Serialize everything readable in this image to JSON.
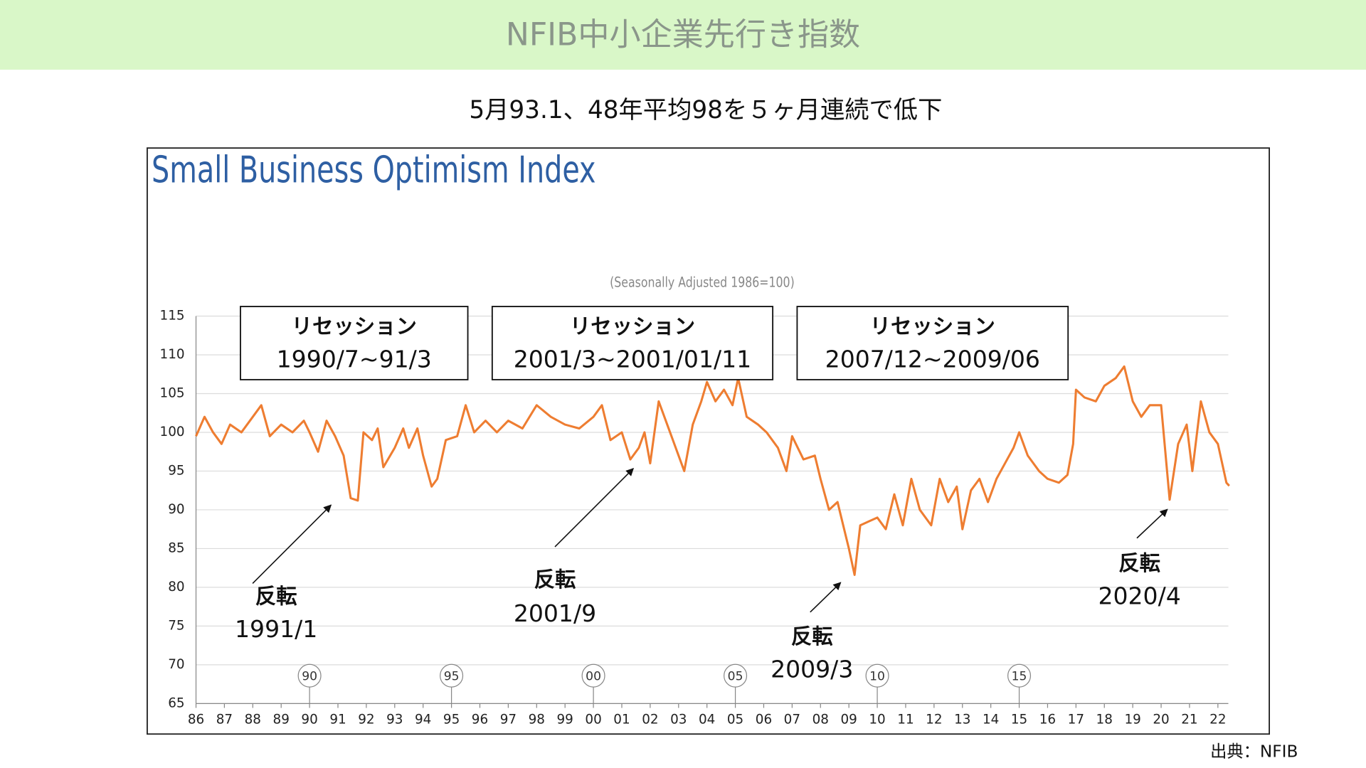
{
  "header": {
    "title": "NFIB中小企業先行き指数",
    "subtitle": "5月93.1、48年平均98を５ヶ月連続で低下"
  },
  "source": "出典：NFIB",
  "chart_data": {
    "type": "line",
    "title": "Small Business Optimism Index",
    "subtitle": "(Seasonally Adjusted 1986=100)",
    "xlim": [
      1986,
      2022.6
    ],
    "ylim": [
      65,
      115
    ],
    "yticks": [
      65,
      70,
      75,
      80,
      85,
      90,
      95,
      100,
      105,
      110,
      115
    ],
    "xticks": [
      {
        "value": 1986,
        "label": "86"
      },
      {
        "value": 1987,
        "label": "87"
      },
      {
        "value": 1988,
        "label": "88"
      },
      {
        "value": 1989,
        "label": "89"
      },
      {
        "value": 1990,
        "label": "90"
      },
      {
        "value": 1991,
        "label": "91"
      },
      {
        "value": 1992,
        "label": "92"
      },
      {
        "value": 1993,
        "label": "93"
      },
      {
        "value": 1994,
        "label": "94"
      },
      {
        "value": 1995,
        "label": "95"
      },
      {
        "value": 1996,
        "label": "96"
      },
      {
        "value": 1997,
        "label": "97"
      },
      {
        "value": 1998,
        "label": "98"
      },
      {
        "value": 1999,
        "label": "99"
      },
      {
        "value": 2000,
        "label": "00"
      },
      {
        "value": 2001,
        "label": "01"
      },
      {
        "value": 2002,
        "label": "02"
      },
      {
        "value": 2003,
        "label": "03"
      },
      {
        "value": 2004,
        "label": "04"
      },
      {
        "value": 2005,
        "label": "05"
      },
      {
        "value": 2006,
        "label": "06"
      },
      {
        "value": 2007,
        "label": "07"
      },
      {
        "value": 2008,
        "label": "08"
      },
      {
        "value": 2009,
        "label": "09"
      },
      {
        "value": 2010,
        "label": "10"
      },
      {
        "value": 2011,
        "label": "11"
      },
      {
        "value": 2012,
        "label": "12"
      },
      {
        "value": 2013,
        "label": "13"
      },
      {
        "value": 2014,
        "label": "14"
      },
      {
        "value": 2015,
        "label": "15"
      },
      {
        "value": 2016,
        "label": "16"
      },
      {
        "value": 2017,
        "label": "17"
      },
      {
        "value": 2018,
        "label": "18"
      },
      {
        "value": 2019,
        "label": "19"
      },
      {
        "value": 2020,
        "label": "20"
      },
      {
        "value": 2021,
        "label": "21"
      },
      {
        "value": 2022,
        "label": "22"
      }
    ],
    "grid": true,
    "series": [
      {
        "color": "#ee7d31",
        "x": [
          1986.0,
          1986.3,
          1986.6,
          1986.9,
          1987.2,
          1987.6,
          1988.0,
          1988.3,
          1988.6,
          1989.0,
          1989.4,
          1989.8,
          1990.0,
          1990.3,
          1990.6,
          1990.9,
          1991.2,
          1991.45,
          1991.7,
          1991.9,
          1992.2,
          1992.4,
          1992.6,
          1993.0,
          1993.3,
          1993.5,
          1993.8,
          1994.0,
          1994.3,
          1994.5,
          1994.8,
          1995.2,
          1995.5,
          1995.8,
          1996.2,
          1996.6,
          1997.0,
          1997.5,
          1998.0,
          1998.5,
          1999.0,
          1999.5,
          2000.0,
          2000.3,
          2000.6,
          2001.0,
          2001.3,
          2001.6,
          2001.8,
          2002.0,
          2002.3,
          2002.6,
          2002.9,
          2003.2,
          2003.5,
          2003.8,
          2004.0,
          2004.3,
          2004.6,
          2004.9,
          2005.1,
          2005.4,
          2005.8,
          2006.1,
          2006.5,
          2006.8,
          2007.0,
          2007.4,
          2007.8,
          2008.0,
          2008.3,
          2008.6,
          2008.8,
          2009.0,
          2009.2,
          2009.4,
          2009.7,
          2010.0,
          2010.3,
          2010.6,
          2010.9,
          2011.2,
          2011.5,
          2011.9,
          2012.2,
          2012.5,
          2012.8,
          2013.0,
          2013.3,
          2013.6,
          2013.9,
          2014.2,
          2014.5,
          2014.8,
          2015.0,
          2015.3,
          2015.7,
          2016.0,
          2016.4,
          2016.7,
          2016.9,
          2017.0,
          2017.3,
          2017.7,
          2018.0,
          2018.4,
          2018.7,
          2019.0,
          2019.3,
          2019.6,
          2020.0,
          2020.3,
          2020.6,
          2020.9,
          2021.1,
          2021.4,
          2021.7,
          2022.0,
          2022.3,
          2022.4
        ],
        "values": [
          99.5,
          102,
          100,
          98.5,
          101,
          100,
          102,
          103.5,
          99.5,
          101,
          100,
          101.5,
          100,
          97.5,
          101.5,
          99.5,
          97,
          91.5,
          91.2,
          100,
          99,
          100.5,
          95.5,
          98,
          100.5,
          98,
          100.5,
          97,
          93,
          94,
          99,
          99.5,
          103.5,
          100,
          101.5,
          100,
          101.5,
          100.5,
          103.5,
          102,
          101,
          100.5,
          102,
          103.5,
          99,
          100,
          96.5,
          98,
          100,
          96,
          104,
          101,
          98,
          95,
          101,
          104,
          106.5,
          104,
          105.5,
          103.5,
          107,
          102,
          101,
          100,
          98,
          95,
          99.5,
          96.5,
          97,
          94,
          90,
          91,
          88,
          85,
          81.6,
          88,
          88.5,
          89,
          87.5,
          92,
          88,
          94,
          90,
          88,
          94,
          91,
          93,
          87.5,
          92.5,
          94,
          91,
          94,
          96,
          98,
          100,
          97,
          95,
          94,
          93.5,
          94.5,
          98.5,
          105.5,
          104.5,
          104,
          106,
          107,
          108.5,
          104,
          102,
          103.5,
          103.5,
          91.3,
          98.5,
          101,
          95,
          104,
          100,
          98.5,
          93.5,
          93.1
        ]
      }
    ],
    "recessions": [
      {
        "label": "リセッション",
        "period": "1990/7~91/3"
      },
      {
        "label": "リセッション",
        "period": "2001/3~2001/01/11"
      },
      {
        "label": "リセッション",
        "period": "2007/12~2009/06"
      }
    ],
    "turns": [
      {
        "label": "反転",
        "date": "1991/1"
      },
      {
        "label": "反転",
        "date": "2001/9"
      },
      {
        "label": "反転",
        "date": "2009/3"
      },
      {
        "label": "反転",
        "date": "2020/4"
      }
    ],
    "period_markers": [
      {
        "x": 1990,
        "label": "90"
      },
      {
        "x": 1995,
        "label": "95"
      },
      {
        "x": 2000,
        "label": "00"
      },
      {
        "x": 2005,
        "label": "05"
      },
      {
        "x": 2010,
        "label": "10"
      },
      {
        "x": 2015,
        "label": "15"
      }
    ]
  }
}
